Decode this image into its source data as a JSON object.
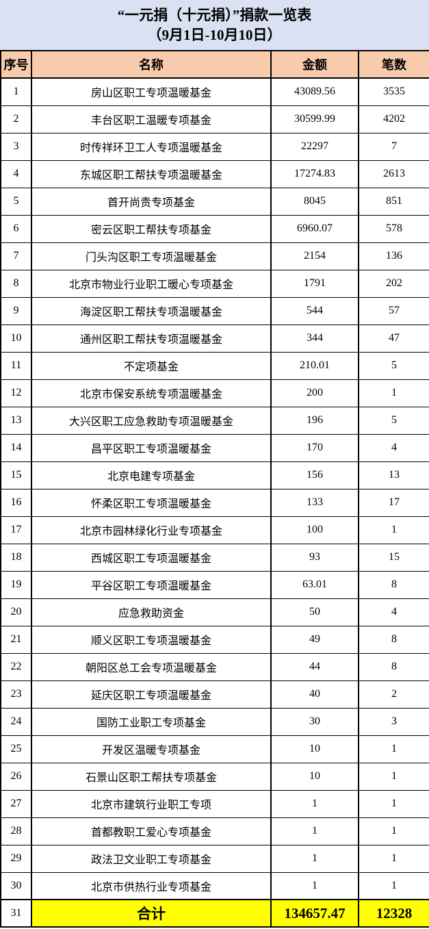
{
  "title": {
    "line1": "“一元捐（十元捐）”捐款一览表",
    "line2": "（9月1日-10月10日）"
  },
  "colors": {
    "title_bg": "#d9e1f2",
    "header_bg": "#f8cbad",
    "total_bg": "#ffff00",
    "border": "#000000",
    "text": "#000000"
  },
  "table": {
    "headers": {
      "index": "序号",
      "name": "名称",
      "amount": "金额",
      "count": "笔数"
    },
    "rows": [
      {
        "index": "1",
        "name": "房山区职工专项温暖基金",
        "amount": "43089.56",
        "count": "3535"
      },
      {
        "index": "2",
        "name": "丰台区职工温暖专项基金",
        "amount": "30599.99",
        "count": "4202"
      },
      {
        "index": "3",
        "name": "时传祥环卫工人专项温暖基金",
        "amount": "22297",
        "count": "7"
      },
      {
        "index": "4",
        "name": "东城区职工帮扶专项温暖基金",
        "amount": "17274.83",
        "count": "2613"
      },
      {
        "index": "5",
        "name": "首开尚责专项基金",
        "amount": "8045",
        "count": "851"
      },
      {
        "index": "6",
        "name": "密云区职工帮扶专项基金",
        "amount": "6960.07",
        "count": "578"
      },
      {
        "index": "7",
        "name": "门头沟区职工专项温暖基金",
        "amount": "2154",
        "count": "136"
      },
      {
        "index": "8",
        "name": "北京市物业行业职工暖心专项基金",
        "amount": "1791",
        "count": "202"
      },
      {
        "index": "9",
        "name": "海淀区职工帮扶专项温暖基金",
        "amount": "544",
        "count": "57"
      },
      {
        "index": "10",
        "name": "通州区职工帮扶专项温暖基金",
        "amount": "344",
        "count": "47"
      },
      {
        "index": "11",
        "name": "不定项基金",
        "amount": "210.01",
        "count": "5"
      },
      {
        "index": "12",
        "name": "北京市保安系统专项温暖基金",
        "amount": "200",
        "count": "1"
      },
      {
        "index": "13",
        "name": "大兴区职工应急救助专项温暖基金",
        "amount": "196",
        "count": "5"
      },
      {
        "index": "14",
        "name": "昌平区职工专项温暖基金",
        "amount": "170",
        "count": "4"
      },
      {
        "index": "15",
        "name": "北京电建专项基金",
        "amount": "156",
        "count": "13"
      },
      {
        "index": "16",
        "name": "怀柔区职工专项温暖基金",
        "amount": "133",
        "count": "17"
      },
      {
        "index": "17",
        "name": "北京市园林绿化行业专项基金",
        "amount": "100",
        "count": "1"
      },
      {
        "index": "18",
        "name": "西城区职工专项温暖基金",
        "amount": "93",
        "count": "15"
      },
      {
        "index": "19",
        "name": "平谷区职工专项温暖基金",
        "amount": "63.01",
        "count": "8"
      },
      {
        "index": "20",
        "name": "应急救助资金",
        "amount": "50",
        "count": "4"
      },
      {
        "index": "21",
        "name": "顺义区职工专项温暖基金",
        "amount": "49",
        "count": "8"
      },
      {
        "index": "22",
        "name": "朝阳区总工会专项温暖基金",
        "amount": "44",
        "count": "8"
      },
      {
        "index": "23",
        "name": "延庆区职工专项温暖基金",
        "amount": "40",
        "count": "2"
      },
      {
        "index": "24",
        "name": "国防工业职工专项基金",
        "amount": "30",
        "count": "3"
      },
      {
        "index": "25",
        "name": "开发区温暖专项基金",
        "amount": "10",
        "count": "1"
      },
      {
        "index": "26",
        "name": "石景山区职工帮扶专项基金",
        "amount": "10",
        "count": "1"
      },
      {
        "index": "27",
        "name": "北京市建筑行业职工专项",
        "amount": "1",
        "count": "1"
      },
      {
        "index": "28",
        "name": "首都教职工爱心专项基金",
        "amount": "1",
        "count": "1"
      },
      {
        "index": "29",
        "name": "政法卫文业职工专项基金",
        "amount": "1",
        "count": "1"
      },
      {
        "index": "30",
        "name": "北京市供热行业专项基金",
        "amount": "1",
        "count": "1"
      }
    ],
    "total_row": {
      "index": "31",
      "name": "合计",
      "amount": "134657.47",
      "count": "12328"
    }
  },
  "chart_data": {
    "type": "table",
    "title": "“一元捐（十元捐）”捐款一览表",
    "subtitle": "（9月1日-10月10日）",
    "columns": [
      "序号",
      "名称",
      "金额",
      "笔数"
    ],
    "rows": [
      [
        1,
        "房山区职工专项温暖基金",
        43089.56,
        3535
      ],
      [
        2,
        "丰台区职工温暖专项基金",
        30599.99,
        4202
      ],
      [
        3,
        "时传祥环卫工人专项温暖基金",
        22297,
        7
      ],
      [
        4,
        "东城区职工帮扶专项温暖基金",
        17274.83,
        2613
      ],
      [
        5,
        "首开尚责专项基金",
        8045,
        851
      ],
      [
        6,
        "密云区职工帮扶专项基金",
        6960.07,
        578
      ],
      [
        7,
        "门头沟区职工专项温暖基金",
        2154,
        136
      ],
      [
        8,
        "北京市物业行业职工暖心专项基金",
        1791,
        202
      ],
      [
        9,
        "海淀区职工帮扶专项温暖基金",
        544,
        57
      ],
      [
        10,
        "通州区职工帮扶专项温暖基金",
        344,
        47
      ],
      [
        11,
        "不定项基金",
        210.01,
        5
      ],
      [
        12,
        "北京市保安系统专项温暖基金",
        200,
        1
      ],
      [
        13,
        "大兴区职工应急救助专项温暖基金",
        196,
        5
      ],
      [
        14,
        "昌平区职工专项温暖基金",
        170,
        4
      ],
      [
        15,
        "北京电建专项基金",
        156,
        13
      ],
      [
        16,
        "怀柔区职工专项温暖基金",
        133,
        17
      ],
      [
        17,
        "北京市园林绿化行业专项基金",
        100,
        1
      ],
      [
        18,
        "西城区职工专项温暖基金",
        93,
        15
      ],
      [
        19,
        "平谷区职工专项温暖基金",
        63.01,
        8
      ],
      [
        20,
        "应急救助资金",
        50,
        4
      ],
      [
        21,
        "顺义区职工专项温暖基金",
        49,
        8
      ],
      [
        22,
        "朝阳区总工会专项温暖基金",
        44,
        8
      ],
      [
        23,
        "延庆区职工专项温暖基金",
        40,
        2
      ],
      [
        24,
        "国防工业职工专项基金",
        30,
        3
      ],
      [
        25,
        "开发区温暖专项基金",
        10,
        1
      ],
      [
        26,
        "石景山区职工帮扶专项基金",
        10,
        1
      ],
      [
        27,
        "北京市建筑行业职工专项",
        1,
        1
      ],
      [
        28,
        "首都教职工爱心专项基金",
        1,
        1
      ],
      [
        29,
        "政法卫文业职工专项基金",
        1,
        1
      ],
      [
        30,
        "北京市供热行业专项基金",
        1,
        1
      ],
      [
        31,
        "合计",
        134657.47,
        12328
      ]
    ]
  }
}
